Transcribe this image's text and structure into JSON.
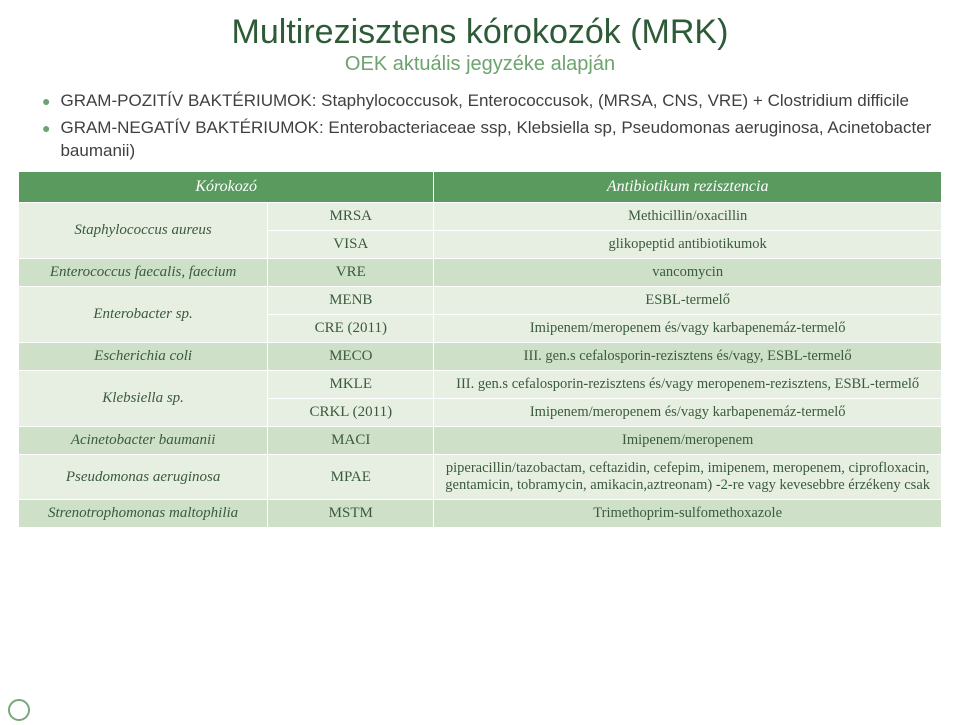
{
  "title": "Multirezisztens kórokozók (MRK)",
  "subtitle": "OEK aktuális jegyzéke alapján",
  "bullets": [
    "GRAM-POZITÍV BAKTÉRIUMOK: Staphylococcusok, Enterococcusok, (MRSA, CNS, VRE) + Clostridium difficile",
    "GRAM-NEGATÍV BAKTÉRIUMOK: Enterobacteriaceae ssp, Klebsiella sp, Pseudomonas aeruginosa, Acinetobacter baumanii)"
  ],
  "table": {
    "headers": [
      "Kórokozó",
      "",
      "Antibiotikum rezisztencia"
    ],
    "col_widths": [
      "27%",
      "18%",
      "55%"
    ],
    "header_bg": "#5a9a5e",
    "header_fg": "#ffffff",
    "row_light_bg": "#e6efe1",
    "row_dark_bg": "#cfe0c9",
    "cell_fg": "#3a5a3d",
    "rows": [
      {
        "shade": "light",
        "organism": "Staphylococcus aureus",
        "org_rowspan": 2,
        "code": "MRSA",
        "desc": "Methicillin/oxacillin"
      },
      {
        "shade": "light",
        "code": "VISA",
        "desc": "glikopeptid antibiotikumok"
      },
      {
        "shade": "dark",
        "organism": "Enterococcus faecalis, faecium",
        "code": "VRE",
        "desc": "vancomycin"
      },
      {
        "shade": "light",
        "organism": "Enterobacter sp.",
        "org_rowspan": 2,
        "code": "MENB",
        "desc": "ESBL-termelő"
      },
      {
        "shade": "light",
        "code": "CRE (2011)",
        "desc": "Imipenem/meropenem és/vagy karbapenemáz-termelő"
      },
      {
        "shade": "dark",
        "organism": "Escherichia coli",
        "code": "MECO",
        "desc": "III. gen.s cefalosporin-rezisztens és/vagy, ESBL-termelő"
      },
      {
        "shade": "light",
        "organism": "Klebsiella sp.",
        "org_rowspan": 2,
        "code": "MKLE",
        "desc": "III. gen.s cefalosporin-rezisztens és/vagy meropenem-rezisztens, ESBL-termelő"
      },
      {
        "shade": "light",
        "code": "CRKL (2011)",
        "desc": "Imipenem/meropenem és/vagy karbapenemáz-termelő"
      },
      {
        "shade": "dark",
        "organism": "Acinetobacter baumanii",
        "code": "MACI",
        "desc": "Imipenem/meropenem"
      },
      {
        "shade": "light",
        "organism": "Pseudomonas aeruginosa",
        "code": "MPAE",
        "desc": "piperacillin/tazobactam, ceftazidin, cefepim, imipenem, meropenem, ciprofloxacin, gentamicin, tobramycin, amikacin,aztreonam)  -2-re vagy kevesebbre érzékeny csak"
      },
      {
        "shade": "dark",
        "organism": "Strenotrophomonas maltophilia",
        "code": "MSTM",
        "desc": "Trimethoprim-sulfomethoxazole"
      }
    ]
  }
}
